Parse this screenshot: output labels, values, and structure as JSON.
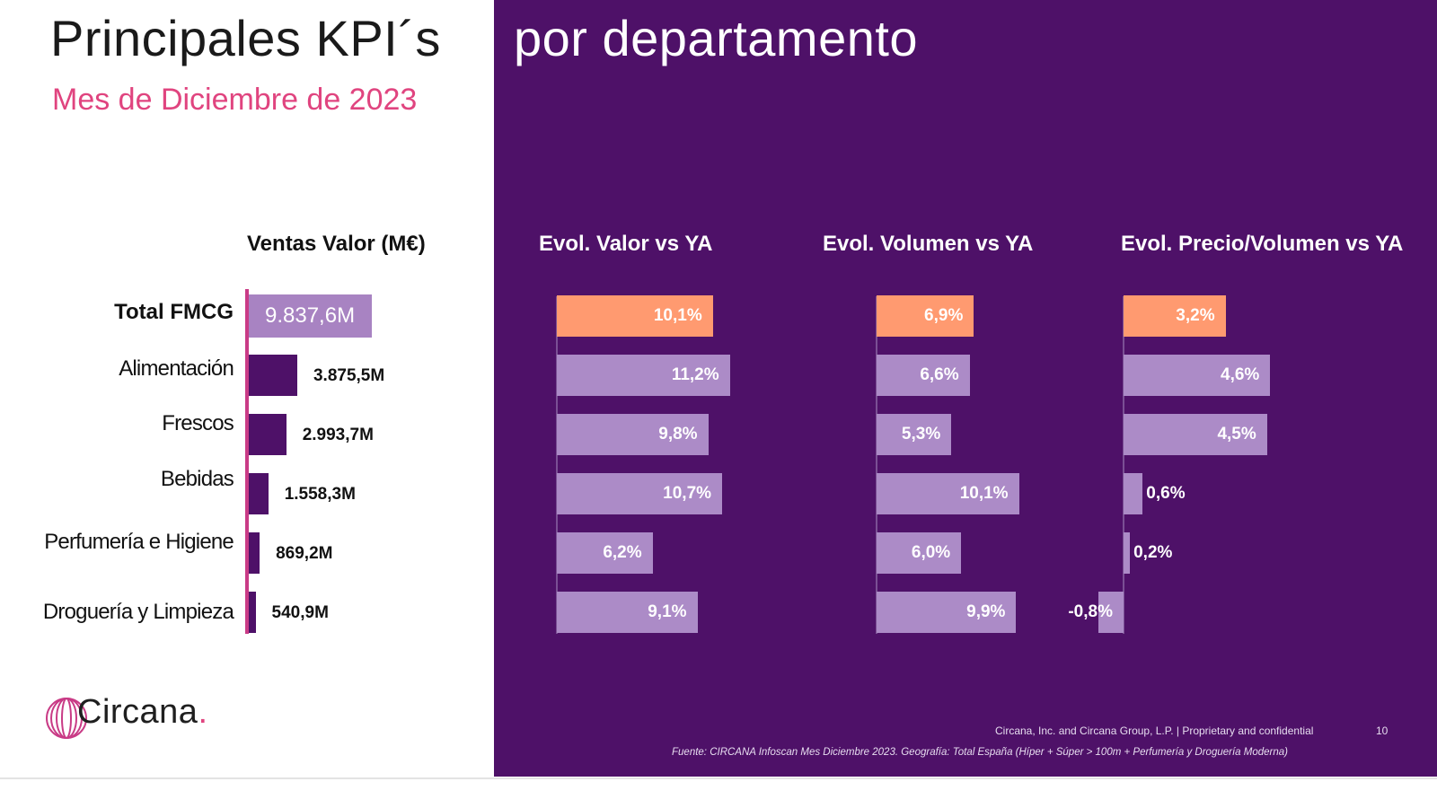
{
  "header": {
    "title_left": "Principales KPI´s",
    "title_right": "por departamento",
    "subtitle": "Mes de Diciembre de 2023"
  },
  "colors": {
    "panel_bg": "#4e1168",
    "subtitle": "#e0447f",
    "total_value_bar": "#a883c2",
    "dept_value_bar": "#4e1168",
    "highlight_bar": "#ff9a70",
    "evol_bar": "#ac8bc7",
    "axis_accent": "#c93b86"
  },
  "chart_data": [
    {
      "type": "bar",
      "orientation": "horizontal",
      "title": "Ventas Valor (M€)",
      "categories": [
        "Total FMCG",
        "Alimentación",
        "Frescos",
        "Bebidas",
        "Perfumería e Higiene",
        "Droguería y Limpieza"
      ],
      "values": [
        9837.6,
        3875.5,
        2993.7,
        1558.3,
        869.2,
        540.9
      ],
      "labels": [
        "9.837,6M",
        "3.875,5M",
        "2.993,7M",
        "1.558,3M",
        "869,2M",
        "540,9M"
      ]
    },
    {
      "type": "bar",
      "orientation": "horizontal",
      "title": "Evol. Valor vs YA",
      "categories": [
        "Total FMCG",
        "Alimentación",
        "Frescos",
        "Bebidas",
        "Perfumería e Higiene",
        "Droguería y Limpieza"
      ],
      "values": [
        10.1,
        11.2,
        9.8,
        10.7,
        6.2,
        9.1
      ],
      "labels": [
        "10,1%",
        "11,2%",
        "9,8%",
        "10,7%",
        "6,2%",
        "9,1%"
      ]
    },
    {
      "type": "bar",
      "orientation": "horizontal",
      "title": "Evol. Volumen vs YA",
      "categories": [
        "Total FMCG",
        "Alimentación",
        "Frescos",
        "Bebidas",
        "Perfumería e Higiene",
        "Droguería y Limpieza"
      ],
      "values": [
        6.9,
        6.6,
        5.3,
        10.1,
        6.0,
        9.9
      ],
      "labels": [
        "6,9%",
        "6,6%",
        "5,3%",
        "10,1%",
        "6,0%",
        "9,9%"
      ]
    },
    {
      "type": "bar",
      "orientation": "horizontal",
      "title": "Evol. Precio/Volumen vs YA",
      "categories": [
        "Total FMCG",
        "Alimentación",
        "Frescos",
        "Bebidas",
        "Perfumería e Higiene",
        "Droguería y Limpieza"
      ],
      "values": [
        3.2,
        4.6,
        4.5,
        0.6,
        0.2,
        -0.8
      ],
      "labels": [
        "3,2%",
        "4,6%",
        "4,5%",
        "0,6%",
        "0,2%",
        "-0,8%"
      ]
    }
  ],
  "logo": {
    "name": "Circana",
    "dot": "."
  },
  "footer": {
    "rights": "Circana, Inc. and Circana Group, L.P. | Proprietary and confidential",
    "page_number": "10",
    "source": "Fuente: CIRCANA Infoscan Mes Diciembre 2023. Geografía: Total España (Híper + Súper > 100m + Perfumería y Droguería Moderna)"
  }
}
